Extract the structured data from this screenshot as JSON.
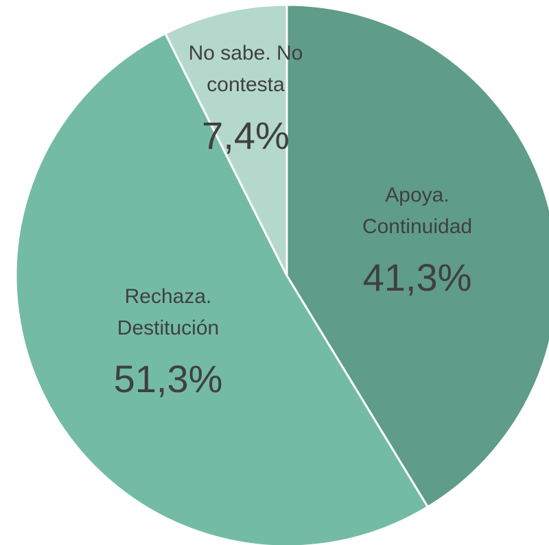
{
  "chart_data": {
    "type": "pie",
    "categories": [
      "Apoya. Continuidad",
      "Rechaza. Destitución",
      "No sabe. No contesta"
    ],
    "values": [
      41.3,
      51.3,
      7.4
    ],
    "value_labels": [
      "41,3%",
      "51,3%",
      "7,4%"
    ],
    "colors": [
      "#5f9c89",
      "#74bba6",
      "#b5d8cc"
    ]
  }
}
